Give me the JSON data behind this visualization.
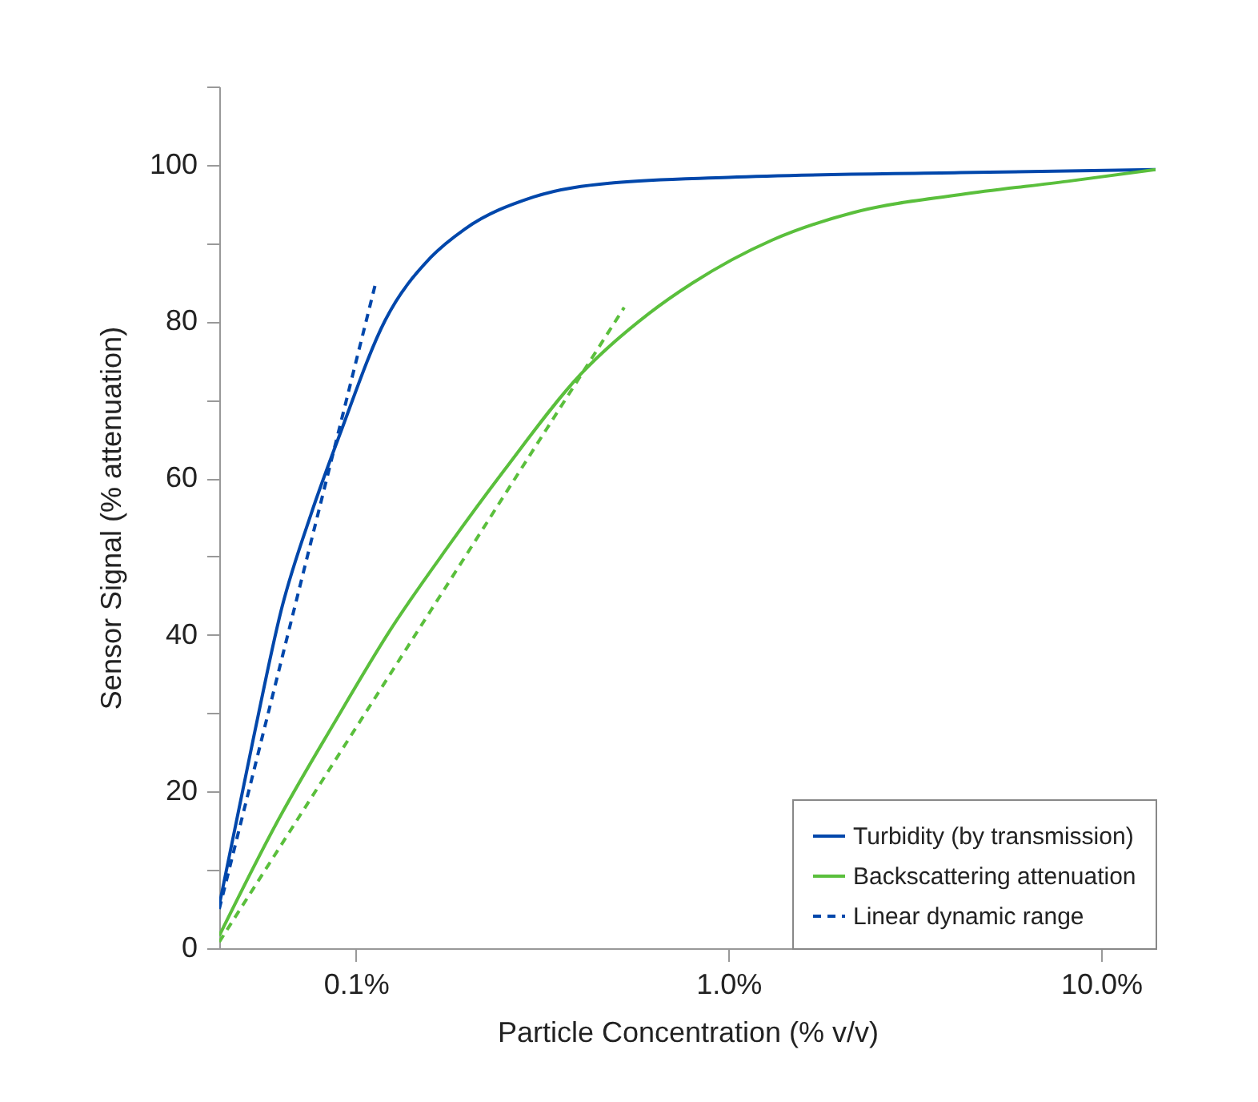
{
  "chart_data": {
    "type": "line",
    "xlabel": "Particle Concentration (% v/v)",
    "ylabel": "Sensor Signal (% attenuation)",
    "log": "x",
    "xlim": [
      0.043,
      14
    ],
    "xticks": [
      {
        "value": 0.1,
        "label": "0.1%"
      },
      {
        "value": 1,
        "label": "1.0%"
      },
      {
        "value": 10,
        "label": "10.0%"
      }
    ],
    "ylim": [
      0,
      110
    ],
    "yticks": [
      0,
      {
        "value": 10,
        "label": null
      },
      20,
      {
        "value": 30,
        "label": null
      },
      40,
      {
        "value": 50,
        "label": null
      },
      60,
      {
        "value": 70,
        "label": null
      },
      80,
      {
        "value": 90,
        "label": null
      },
      100,
      {
        "value": 110,
        "label": null
      }
    ],
    "grid": false,
    "legend": "bottom right",
    "series": [
      {
        "name": "Turbidity (by transmission)",
        "color": "#0047ab",
        "x": [
          0.043,
          0.0531,
          0.0634,
          0.0758,
          0.0906,
          0.12,
          0.159,
          0.196,
          0.3,
          0.492,
          1.0,
          4.19,
          14
        ],
        "values": [
          5.5,
          26.8,
          43.6,
          55.4,
          65.6,
          80.2,
          88.2,
          91.8,
          95.9,
          97.7,
          98.4,
          99,
          99.4
        ]
      },
      {
        "name": "Backscattering attenuation",
        "color": "#5abf3c",
        "x": [
          0.043,
          0.0613,
          0.0871,
          0.124,
          0.177,
          0.251,
          0.4,
          0.611,
          0.8,
          1.31,
          2.16,
          4.19,
          8.13,
          14
        ],
        "values": [
          1.6,
          16,
          28.6,
          40.7,
          51.3,
          61.1,
          73.2,
          81,
          84.9,
          90.4,
          93.9,
          96.2,
          97.9,
          99.4
        ]
      },
      {
        "name": "Linear dynamic range",
        "color": "#0047ab",
        "line_style": "dashed",
        "x": [
          0.043,
          0.113
        ],
        "values": [
          5,
          84.9
        ]
      },
      {
        "color": "#5abf3c",
        "line_style": "dashed",
        "x": [
          0.043,
          0.525
        ],
        "values": [
          0.8,
          81.8
        ]
      }
    ]
  }
}
